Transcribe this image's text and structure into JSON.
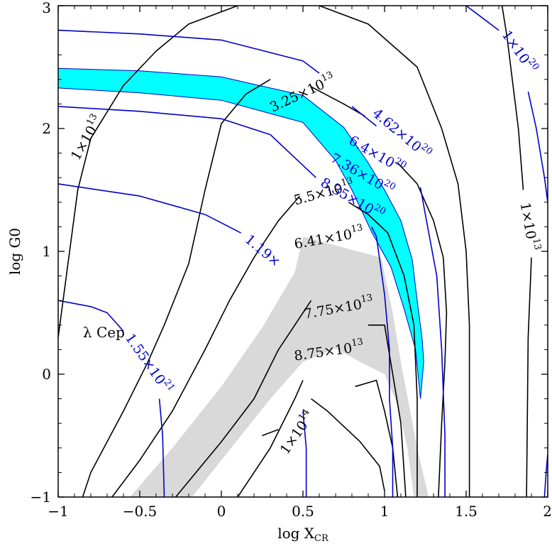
{
  "chart_data": {
    "type": "contour",
    "xlabel": "log X",
    "xlabel_sub": "CR",
    "ylabel": "log G0",
    "xlim": [
      -1,
      2
    ],
    "ylim": [
      -1,
      3
    ],
    "xticks": [
      -1,
      -0.5,
      0,
      0.5,
      1,
      1.5,
      2
    ],
    "xtick_labels": [
      "−1",
      "−0.5",
      "0",
      "0.5",
      "1",
      "1.5",
      "2"
    ],
    "yticks": [
      -1,
      0,
      1,
      2,
      3
    ],
    "ytick_labels": [
      "−1",
      "0",
      "1",
      "2",
      "3"
    ],
    "colors": {
      "black": "#000000",
      "blue": "#0000cc",
      "cyan": "#00ffff",
      "gray": "#d9d9d9"
    },
    "annotation": {
      "text": "λ Cep",
      "x": -0.72,
      "y": 0.3
    },
    "bands": [
      {
        "color": "cyan",
        "points": [
          [
            -1,
            2.49
          ],
          [
            -0.5,
            2.47
          ],
          [
            0,
            2.42
          ],
          [
            0.5,
            2.27
          ],
          [
            0.75,
            2.01
          ],
          [
            0.9,
            1.72
          ],
          [
            1.0,
            1.5
          ],
          [
            1.1,
            1.25
          ],
          [
            1.17,
            0.93
          ],
          [
            1.2,
            0.6
          ],
          [
            1.23,
            0.29
          ],
          [
            1.24,
            0.1
          ],
          [
            1.22,
            -0.2
          ],
          [
            1.19,
            0.2
          ],
          [
            1.12,
            0.53
          ],
          [
            1.04,
            0.87
          ],
          [
            0.92,
            1.16
          ],
          [
            0.8,
            1.5
          ],
          [
            0.7,
            1.74
          ],
          [
            0.5,
            2.05
          ],
          [
            0,
            2.23
          ],
          [
            -0.5,
            2.29
          ],
          [
            -1,
            2.33
          ]
        ]
      },
      {
        "color": "gray",
        "points": [
          [
            -0.56,
            -1
          ],
          [
            -0.3,
            -0.6
          ],
          [
            0,
            -0.1
          ],
          [
            0.25,
            0.38
          ],
          [
            0.45,
            0.83
          ],
          [
            0.5,
            1.12
          ],
          [
            0.75,
            1.03
          ],
          [
            0.98,
            0.95
          ],
          [
            1.05,
            0.5
          ],
          [
            1.1,
            0.1
          ],
          [
            1.15,
            -0.25
          ],
          [
            1.2,
            -0.6
          ],
          [
            1.27,
            -1
          ],
          [
            1.18,
            -1
          ],
          [
            1.14,
            -0.6
          ],
          [
            1.08,
            -0.25
          ],
          [
            1.0,
            -0.0
          ],
          [
            0.85,
            0.1
          ],
          [
            0.7,
            0.21
          ],
          [
            0.5,
            0.1
          ],
          [
            0.3,
            -0.2
          ],
          [
            0,
            -0.7
          ],
          [
            -0.18,
            -1
          ]
        ]
      }
    ],
    "series": [
      {
        "group": "black",
        "points": [
          [
            -1,
            0.3
          ],
          [
            -0.95,
            0.8
          ],
          [
            -0.88,
            1.5
          ],
          [
            -0.8,
            1.92
          ],
          [
            -0.6,
            2.35
          ],
          [
            -0.4,
            2.63
          ],
          [
            -0.2,
            2.85
          ],
          [
            0.1,
            3.0
          ]
        ]
      },
      {
        "group": "black",
        "points": [
          [
            0.6,
            3.0
          ],
          [
            0.9,
            2.85
          ],
          [
            1.2,
            2.5
          ],
          [
            1.35,
            2.0
          ],
          [
            1.45,
            1.55
          ],
          [
            1.5,
            1.0
          ],
          [
            1.52,
            0.4
          ],
          [
            1.52,
            -0.3
          ],
          [
            1.52,
            -1
          ]
        ]
      },
      {
        "group": "black",
        "points": [
          [
            -0.85,
            -1
          ],
          [
            -0.8,
            -0.8
          ],
          [
            -0.6,
            -0.3
          ],
          [
            -0.45,
            0.1
          ],
          [
            -0.35,
            0.4
          ],
          [
            -0.2,
            0.9
          ],
          [
            -0.1,
            1.5
          ],
          [
            0,
            2.04
          ],
          [
            0.15,
            2.28
          ],
          [
            0.3,
            2.4
          ]
        ]
      },
      {
        "group": "black",
        "points": [
          [
            0.55,
            2.34
          ],
          [
            0.75,
            2.2
          ],
          [
            0.88,
            2.1
          ]
        ]
      },
      {
        "group": "black",
        "points": [
          [
            1.08,
            1.72
          ],
          [
            1.2,
            1.55
          ],
          [
            1.3,
            1.25
          ],
          [
            1.36,
            0.95
          ],
          [
            1.38,
            0.5
          ],
          [
            1.37,
            0.1
          ],
          [
            1.35,
            -0.4
          ],
          [
            1.33,
            -1
          ]
        ]
      },
      {
        "group": "black",
        "points": [
          [
            -0.67,
            -1
          ],
          [
            -0.5,
            -0.7
          ],
          [
            -0.3,
            -0.3
          ],
          [
            -0.1,
            0.2
          ],
          [
            0.05,
            0.6
          ],
          [
            0.2,
            0.95
          ],
          [
            0.35,
            1.25
          ],
          [
            0.48,
            1.45
          ]
        ]
      },
      {
        "group": "black",
        "points": [
          [
            0.78,
            1.4
          ],
          [
            0.9,
            1.3
          ],
          [
            1.02,
            1.15
          ],
          [
            1.12,
            0.8
          ],
          [
            1.18,
            0.4
          ],
          [
            1.2,
            -0.2
          ],
          [
            1.2,
            -1
          ]
        ]
      },
      {
        "group": "black",
        "points": [
          [
            -0.28,
            -1
          ],
          [
            0,
            -0.55
          ],
          [
            0.2,
            -0.2
          ],
          [
            0.35,
            0.2
          ],
          [
            0.55,
            0.6
          ]
        ]
      },
      {
        "group": "black",
        "points": [
          [
            0.9,
            0.4
          ],
          [
            1.0,
            0.4
          ],
          [
            1.05,
            0.0
          ],
          [
            1.1,
            -0.4
          ],
          [
            1.13,
            -1
          ]
        ]
      },
      {
        "group": "black",
        "points": [
          [
            0.1,
            -1
          ],
          [
            0.3,
            -0.6
          ],
          [
            0.45,
            -0.2
          ],
          [
            0.5,
            -0.05
          ]
        ]
      },
      {
        "group": "black",
        "points": [
          [
            0.82,
            -0.1
          ],
          [
            0.95,
            -0.05
          ],
          [
            1.0,
            -0.3
          ],
          [
            1.05,
            -0.6
          ],
          [
            1.08,
            -1
          ]
        ]
      },
      {
        "group": "black",
        "points": [
          [
            0.25,
            -0.5
          ],
          [
            0.35,
            -0.45
          ]
        ]
      },
      {
        "group": "black",
        "points": [
          [
            0.55,
            -0.2
          ],
          [
            0.65,
            -0.3
          ],
          [
            0.85,
            -0.55
          ],
          [
            0.97,
            -0.75
          ],
          [
            1.0,
            -0.95
          ]
        ]
      },
      {
        "group": "black",
        "points": [
          [
            1.72,
            3.0
          ],
          [
            1.75,
            2.75
          ],
          [
            1.82,
            2.0
          ],
          [
            1.85,
            1.5
          ]
        ]
      },
      {
        "group": "black",
        "points": [
          [
            1.9,
            0.95
          ],
          [
            1.88,
            0.3
          ],
          [
            1.87,
            -1
          ]
        ]
      },
      {
        "group": "blue",
        "points": [
          [
            -1,
            2.8
          ],
          [
            -0.5,
            2.77
          ],
          [
            0,
            2.72
          ],
          [
            0.5,
            2.55
          ],
          [
            0.6,
            2.45
          ]
        ]
      },
      {
        "group": "blue",
        "points": [
          [
            0.8,
            2.18
          ],
          [
            0.95,
            2.02
          ]
        ]
      },
      {
        "group": "blue",
        "points": [
          [
            1.22,
            1.52
          ],
          [
            1.25,
            1.3
          ],
          [
            1.32,
            0.8
          ],
          [
            1.35,
            0.2
          ],
          [
            1.37,
            -0.5
          ],
          [
            1.37,
            -1
          ]
        ]
      },
      {
        "group": "blue",
        "points": [
          [
            -1,
            2.18
          ],
          [
            -0.5,
            2.14
          ],
          [
            0,
            2.08
          ],
          [
            0.3,
            1.95
          ],
          [
            0.5,
            1.7
          ],
          [
            0.58,
            1.6
          ]
        ]
      },
      {
        "group": "blue",
        "points": [
          [
            -1,
            1.55
          ],
          [
            -0.5,
            1.45
          ],
          [
            -0.1,
            1.3
          ],
          [
            0.12,
            1.15
          ]
        ]
      },
      {
        "group": "blue",
        "points": [
          [
            0.92,
            1.2
          ],
          [
            0.95,
            1.12
          ],
          [
            1.0,
            0.65
          ],
          [
            1.03,
            0.2
          ],
          [
            1.03,
            -0.2
          ],
          [
            1.05,
            -0.6
          ],
          [
            1.05,
            -1
          ]
        ]
      },
      {
        "group": "blue",
        "points": [
          [
            -1,
            0.6
          ],
          [
            -0.8,
            0.55
          ],
          [
            -0.7,
            0.5
          ],
          [
            -0.6,
            0.35
          ]
        ]
      },
      {
        "group": "blue",
        "points": [
          [
            -0.38,
            -0.2
          ],
          [
            -0.36,
            -0.5
          ],
          [
            -0.35,
            -1
          ]
        ]
      },
      {
        "group": "blue",
        "points": [
          [
            0.5,
            -0.3
          ],
          [
            0.52,
            -0.6
          ],
          [
            0.52,
            -1
          ]
        ]
      },
      {
        "group": "blue",
        "points": [
          [
            1.5,
            3.0
          ],
          [
            1.6,
            2.9
          ],
          [
            1.7,
            2.8
          ]
        ]
      },
      {
        "group": "blue",
        "points": [
          [
            1.88,
            2.3
          ],
          [
            1.93,
            2.0
          ],
          [
            1.98,
            1.6
          ],
          [
            2.0,
            1.4
          ]
        ]
      },
      {
        "group": "blue",
        "points": [
          [
            2.0,
            -0.65
          ],
          [
            1.99,
            -0.8
          ],
          [
            1.98,
            -1
          ]
        ]
      }
    ],
    "contour_labels": [
      {
        "group": "black",
        "text": "3.25×10",
        "sup": "13",
        "x": 0.5,
        "y": 2.28,
        "angle": -25
      },
      {
        "group": "black",
        "text": "1×10",
        "sup": "13",
        "x": -0.82,
        "y": 1.92,
        "angle": -60
      },
      {
        "group": "black",
        "text": "5.5×10",
        "sup": "13",
        "x": 0.63,
        "y": 1.47,
        "angle": -15
      },
      {
        "group": "black",
        "text": "6.41×10",
        "sup": "13",
        "x": 0.66,
        "y": 1.1,
        "angle": -10
      },
      {
        "group": "black",
        "text": "7.75×10",
        "sup": "13",
        "x": 0.72,
        "y": 0.53,
        "angle": -10
      },
      {
        "group": "black",
        "text": "8.75×10",
        "sup": "13",
        "x": 0.66,
        "y": 0.18,
        "angle": -8
      },
      {
        "group": "black",
        "text": "1×10",
        "sup": "14",
        "x": 0.47,
        "y": -0.48,
        "angle": -55
      },
      {
        "group": "black",
        "text": "1×10",
        "sup": "13",
        "x": 1.88,
        "y": 1.2,
        "angle": 80
      },
      {
        "group": "blue",
        "text": "4.62×10",
        "sup": "20",
        "x": 1.1,
        "y": 1.95,
        "angle": 40
      },
      {
        "group": "blue",
        "text": "6.4×10",
        "sup": "20",
        "x": 0.95,
        "y": 1.78,
        "angle": 30
      },
      {
        "group": "blue",
        "text": "7.36×10",
        "sup": "20",
        "x": 0.86,
        "y": 1.62,
        "angle": 30
      },
      {
        "group": "blue",
        "text": "8.35×10",
        "sup": "20",
        "x": 0.8,
        "y": 1.42,
        "angle": 30
      },
      {
        "group": "blue",
        "text": "1.19×",
        "sup": "",
        "x": 0.25,
        "y": 1.0,
        "angle": 40
      },
      {
        "group": "blue",
        "text": "1.55×10",
        "sup": "21",
        "x": -0.45,
        "y": 0.08,
        "angle": 55
      },
      {
        "group": "blue",
        "text": "1×10",
        "sup": "20",
        "x": 1.82,
        "y": 2.62,
        "angle": 55
      }
    ]
  }
}
